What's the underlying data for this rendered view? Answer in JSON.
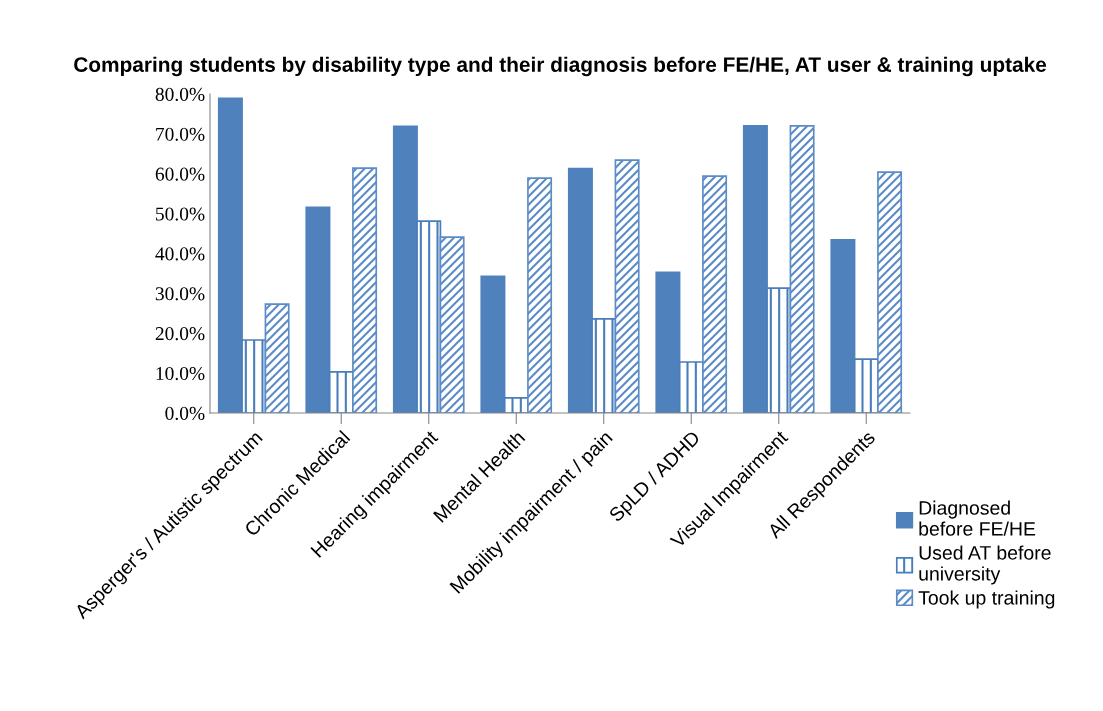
{
  "chart_data": {
    "type": "bar",
    "title": "Comparing students by disability type and their diagnosis before FE/HE, AT user & training uptake",
    "categories": [
      "Asperger's / Autistic spectrum",
      "Chronic Medical",
      "Hearing impairment",
      "Mental Health",
      "Mobility impairment / pain",
      "SpLD / ADHD",
      "Visual Impairment",
      "All Respondents"
    ],
    "series": [
      {
        "name": "Diagnosed\nbefore FE/HE",
        "color": "#4f81bd",
        "values": [
          78.9,
          51.6,
          71.9,
          34.3,
          61.3,
          35.3,
          72.0,
          43.4
        ]
      },
      {
        "name": "Used AT before\nuniversity",
        "color": "#4a7ebb",
        "values": [
          18.3,
          10.3,
          48.1,
          3.8,
          23.6,
          12.8,
          31.3,
          13.5
        ]
      },
      {
        "name": "Took up training",
        "color": "#5b8cc8",
        "values": [
          27.3,
          61.4,
          44.1,
          58.9,
          63.4,
          59.4,
          72.0,
          60.4
        ]
      }
    ],
    "ylim": [
      0,
      80
    ],
    "yticks": [
      {
        "value": 0,
        "label": "0.0%"
      },
      {
        "value": 10,
        "label": "10.0%"
      },
      {
        "value": 20,
        "label": "20.0%"
      },
      {
        "value": 30,
        "label": "30.0%"
      },
      {
        "value": 40,
        "label": "40.0%"
      },
      {
        "value": 50,
        "label": "50.0%"
      },
      {
        "value": 60,
        "label": "60.0%"
      },
      {
        "value": 70,
        "label": "70.0%"
      },
      {
        "value": 80,
        "label": "80.0%"
      }
    ],
    "grid": false,
    "legend": "right"
  }
}
